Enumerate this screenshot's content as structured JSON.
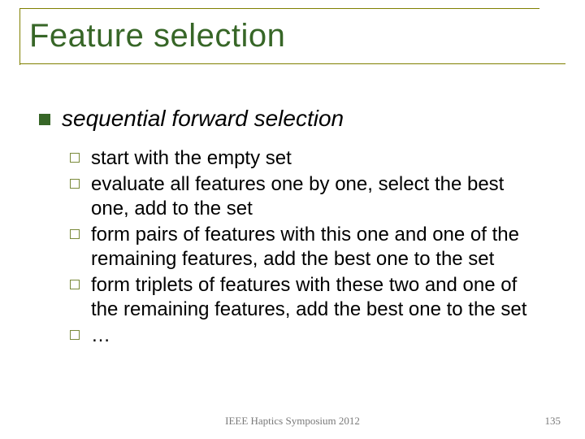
{
  "title": "Feature selection",
  "heading": "sequential forward selection",
  "items": [
    "start with the empty set",
    "evaluate all features one by one, select the best one, add to the set",
    "form pairs of features with this one and one of the remaining features, add the best one to the set",
    "form triplets of features with these two and one of the remaining features, add the best one to the set",
    "…"
  ],
  "footer": "IEEE Haptics Symposium 2012",
  "page": "135",
  "colors": {
    "title": "#376627",
    "rule": "#808000",
    "bullet_l1": "#376627",
    "bullet_l2_border": "#7a8a3a",
    "text": "#000000",
    "footer": "#7a7a7a",
    "background": "#ffffff"
  },
  "fonts": {
    "title_size": 40,
    "l1_size": 28,
    "l2_size": 24,
    "footer_size": 13
  }
}
